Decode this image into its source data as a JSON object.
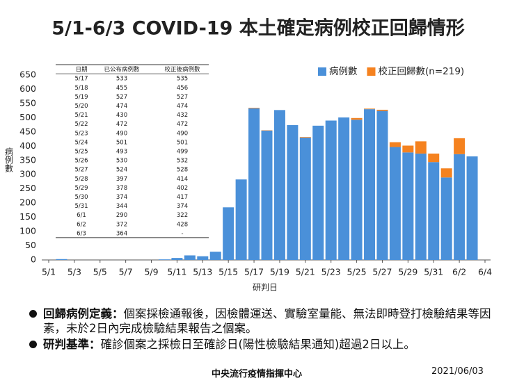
{
  "chart_data": {
    "type": "stacked_bar",
    "title": "5/1-6/3 COVID-19 本土確定病例校正回歸情形",
    "y_label": "病例數",
    "x_label": "研判日",
    "categories": [
      "5/1",
      null,
      "5/3",
      null,
      "5/5",
      null,
      "5/7",
      null,
      "5/9",
      null,
      "5/11",
      null,
      "5/13",
      null,
      "5/15",
      null,
      "5/17",
      null,
      "5/19",
      null,
      "5/21",
      null,
      "5/23",
      null,
      "5/25",
      null,
      "5/27",
      null,
      "5/29",
      null,
      "5/31",
      null,
      "6/2",
      null,
      "6/4"
    ],
    "series": [
      {
        "name": "病例數",
        "color": "#4a90d9",
        "values": [
          0,
          3,
          0,
          0,
          0,
          0,
          0,
          0,
          0,
          2,
          7,
          16,
          13,
          29,
          185,
          283,
          533,
          455,
          527,
          474,
          430,
          472,
          490,
          501,
          493,
          530,
          524,
          397,
          378,
          374,
          344,
          290,
          372,
          364,
          null
        ]
      },
      {
        "name": "校正回歸數(n=219)",
        "color": "#f5821f",
        "values": [
          0,
          0,
          0,
          0,
          0,
          0,
          0,
          0,
          0,
          0,
          0,
          0,
          0,
          0,
          0,
          0,
          2,
          1,
          0,
          0,
          2,
          0,
          0,
          0,
          6,
          2,
          4,
          17,
          24,
          43,
          30,
          32,
          56,
          0,
          null
        ]
      }
    ],
    "ylim": [
      0,
      650
    ],
    "yticks": [
      0,
      50,
      100,
      150,
      200,
      250,
      300,
      350,
      400,
      450,
      500,
      550,
      600,
      650
    ],
    "legend": "top-right",
    "grid": false
  },
  "table": {
    "header": [
      "日期",
      "已公布病例數",
      "校正後病例數"
    ],
    "rows": [
      [
        "5/17",
        "533",
        "535"
      ],
      [
        "5/18",
        "455",
        "456"
      ],
      [
        "5/19",
        "527",
        "527"
      ],
      [
        "5/20",
        "474",
        "474"
      ],
      [
        "5/21",
        "430",
        "432"
      ],
      [
        "5/22",
        "472",
        "472"
      ],
      [
        "5/23",
        "490",
        "490"
      ],
      [
        "5/24",
        "501",
        "501"
      ],
      [
        "5/25",
        "493",
        "499"
      ],
      [
        "5/26",
        "530",
        "532"
      ],
      [
        "5/27",
        "524",
        "528"
      ],
      [
        "5/28",
        "397",
        "414"
      ],
      [
        "5/29",
        "378",
        "402"
      ],
      [
        "5/30",
        "374",
        "417"
      ],
      [
        "5/31",
        "344",
        "374"
      ],
      [
        "6/1",
        "290",
        "322"
      ],
      [
        "6/2",
        "372",
        "428"
      ],
      [
        "6/3",
        "364",
        "-"
      ]
    ]
  },
  "notes": [
    {
      "term": "回歸病例定義：",
      "text": "個案採檢通報後，因檢體運送、實驗室量能、無法即時登打檢驗結果等因素，未於2日內完成檢驗結果報告之個案。"
    },
    {
      "term": "研判基準：",
      "text": "確診個案之採檢日至確診日(陽性檢驗結果通知)超過2日以上。"
    }
  ],
  "footer": {
    "source": "中央流行疫情指揮中心",
    "date": "2021/06/03"
  }
}
